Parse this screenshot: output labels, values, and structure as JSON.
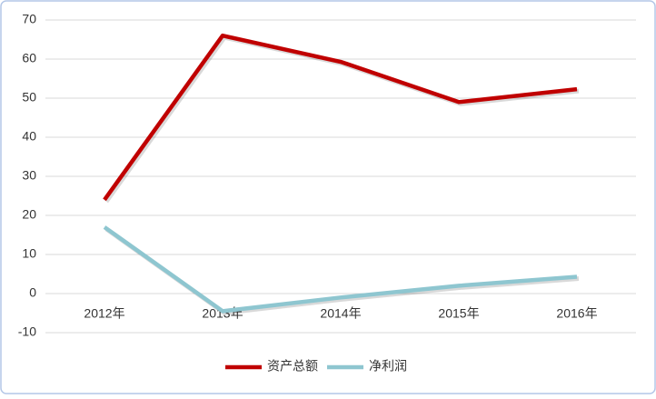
{
  "chart_data": {
    "type": "line",
    "categories": [
      "2012年",
      "2013年",
      "2014年",
      "2015年",
      "2016年"
    ],
    "series": [
      {
        "name": "资产总额",
        "color": "#c00000",
        "values": [
          24,
          66,
          59.3,
          49,
          52.3
        ]
      },
      {
        "name": "净利润",
        "color": "#8ec6d0",
        "values": [
          17,
          -4.5,
          -1,
          2,
          4.3
        ]
      }
    ],
    "ylim": [
      -10,
      70
    ],
    "yticks": [
      -10,
      0,
      10,
      20,
      30,
      40,
      50,
      60,
      70
    ],
    "grid": true,
    "legend": "bottom"
  }
}
